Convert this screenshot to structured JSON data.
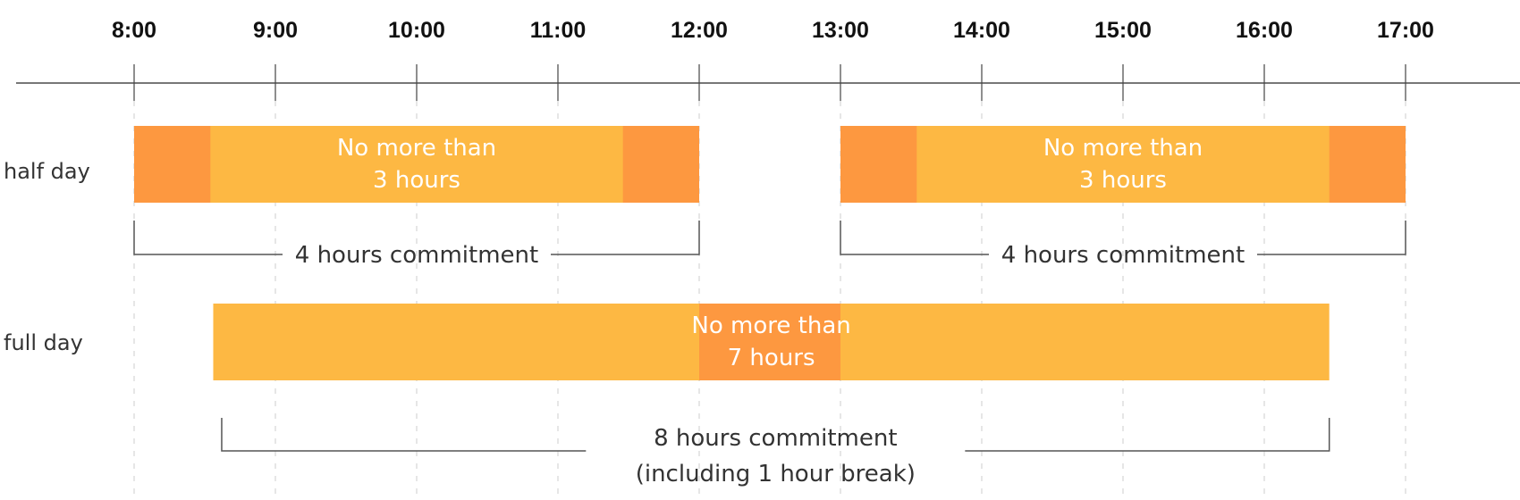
{
  "colors": {
    "base": "#FDB843",
    "buffer": "#FD9840",
    "axis": "#777777",
    "grid": "#cccccc",
    "bracket": "#555555"
  },
  "axis": {
    "ticks": [
      "8:00",
      "9:00",
      "10:00",
      "11:00",
      "12:00",
      "13:00",
      "14:00",
      "15:00",
      "16:00",
      "17:00"
    ],
    "start_hour": 8,
    "end_hour": 17
  },
  "rows": [
    {
      "label": "half day",
      "bars": [
        {
          "start": 8,
          "end": 12,
          "buffers": [
            [
              8,
              8.54
            ],
            [
              11.46,
              12
            ]
          ],
          "text": [
            "No more than",
            "3 hours"
          ]
        },
        {
          "start": 13,
          "end": 17,
          "buffers": [
            [
              13,
              13.54
            ],
            [
              16.46,
              17
            ]
          ],
          "text": [
            "No more than",
            "3 hours"
          ]
        }
      ],
      "brackets": [
        {
          "start": 8,
          "end": 12,
          "text": [
            "4 hours commitment"
          ]
        },
        {
          "start": 13,
          "end": 17,
          "text": [
            "4 hours commitment"
          ]
        }
      ]
    },
    {
      "label": "full day",
      "bars": [
        {
          "start": 8.56,
          "end": 16.46,
          "buffers": [
            [
              12,
              13
            ]
          ],
          "text": [
            "No more than",
            "7 hours"
          ]
        }
      ],
      "brackets": [
        {
          "start": 8.62,
          "end": 16.46,
          "text": [
            "8 hours commitment",
            "(including 1 hour break)"
          ]
        }
      ]
    }
  ]
}
